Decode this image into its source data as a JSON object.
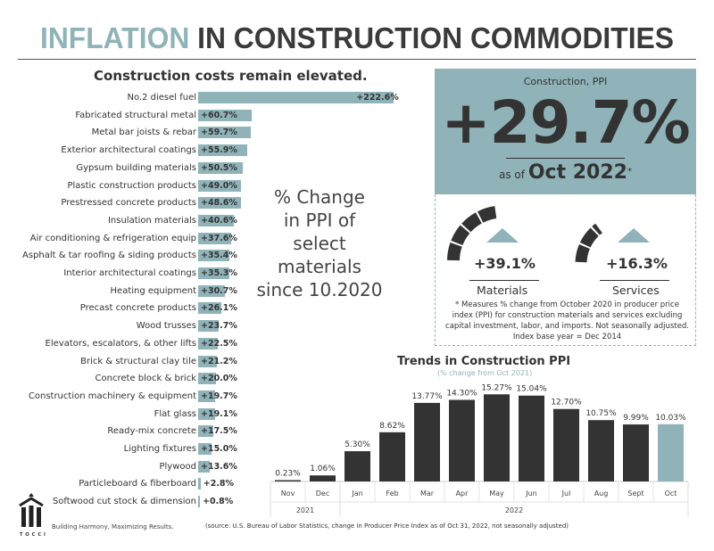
{
  "header": {
    "title_highlight": "INFLATION",
    "title_rest": " IN CONSTRUCTION COMMODITIES"
  },
  "left": {
    "subtitle": "Construction costs remain elevated.",
    "note_lines": [
      "% Change",
      "in PPI of",
      "select",
      "materials",
      "since 10.2020"
    ]
  },
  "summary": {
    "label": "Construction, PPI",
    "value": "+29.7%",
    "as_of_prefix": "as of",
    "as_of_date": "Oct 2022",
    "asterisk": "*",
    "materials": {
      "value": "+39.1%",
      "label": "Materials"
    },
    "services": {
      "value": "+16.3%",
      "label": "Services"
    },
    "footnote": "* Measures % change from October 2020 in producer price index (PPI) for construction materials and services excluding capital investment, labor, and imports. Not seasonally adjusted. Index base year = Dec 2014"
  },
  "footer": {
    "tagline": "Building Harmony, Maximizing Results.",
    "logo_text": "TOCCI",
    "source": "(source: U.S. Bureau of Labor Statistics, change in Producer Price Index as of Oct 31, 2022, not seasonally adjusted)"
  },
  "colors": {
    "accent": "#8fb3b8",
    "dark": "#333333"
  },
  "chart_data": [
    {
      "type": "bar",
      "orientation": "horizontal",
      "title": "Construction costs remain elevated.",
      "categories": [
        "No.2 diesel fuel",
        "Fabricated structural metal",
        "Metal bar joists & rebar",
        "Exterior architectural coatings",
        "Gypsum building materials",
        "Plastic construction products",
        "Prestressed concrete products",
        "Insulation materials",
        "Air conditioning & refrigeration equip",
        "Asphalt & tar roofing & siding products",
        "Interior architectural coatings",
        "Heating equipment",
        "Precast concrete products",
        "Wood trusses",
        "Elevators, escalators, & other lifts",
        "Brick & structural clay tile",
        "Concrete block & brick",
        "Construction machinery & equipment",
        "Flat glass",
        "Ready-mix concrete",
        "Lighting fixtures",
        "Plywood",
        "Particleboard & fiberboard",
        "Softwood cut stock & dimension"
      ],
      "values": [
        222.6,
        60.7,
        59.7,
        55.9,
        50.5,
        49.0,
        48.6,
        40.6,
        37.6,
        35.4,
        35.3,
        30.7,
        26.1,
        23.7,
        22.5,
        21.2,
        20.0,
        19.7,
        19.1,
        17.5,
        15.0,
        13.6,
        2.8,
        0.8
      ],
      "data_labels": [
        "+222.6%",
        "+60.7%",
        "+59.7%",
        "+55.9%",
        "+50.5%",
        "+49.0%",
        "+48.6%",
        "+40.6%",
        "+37.6%",
        "+35.4%",
        "+35.3%",
        "+30.7%",
        "+26.1%",
        "+23.7%",
        "+22.5%",
        "+21.2%",
        "+20.0%",
        "+19.7%",
        "+19.1%",
        "+17.5%",
        "+15.0%",
        "+13.6%",
        "+2.8%",
        "+0.8%"
      ],
      "color": "#8fb3b8"
    },
    {
      "type": "bar",
      "title": "Trends in Construction PPI",
      "subtitle": "(% change from Oct 2021)",
      "categories": [
        "Nov",
        "Dec",
        "Jan",
        "Feb",
        "Mar",
        "Apr",
        "May",
        "Jun",
        "Jul",
        "Aug",
        "Sept",
        "Oct"
      ],
      "years": [
        {
          "label": "2021",
          "span": 2
        },
        {
          "label": "2022",
          "span": 10
        }
      ],
      "values": [
        0.23,
        1.06,
        5.3,
        8.62,
        13.77,
        14.3,
        15.27,
        15.04,
        12.7,
        10.75,
        9.99,
        10.03
      ],
      "data_labels": [
        "0.23%",
        "1.06%",
        "5.30%",
        "8.62%",
        "13.77%",
        "14.30%",
        "15.27%",
        "15.04%",
        "12.70%",
        "10.75%",
        "9.99%",
        "10.03%"
      ],
      "colors": [
        "#333333",
        "#333333",
        "#333333",
        "#333333",
        "#333333",
        "#333333",
        "#333333",
        "#333333",
        "#333333",
        "#333333",
        "#333333",
        "#8fb3b8"
      ]
    }
  ]
}
